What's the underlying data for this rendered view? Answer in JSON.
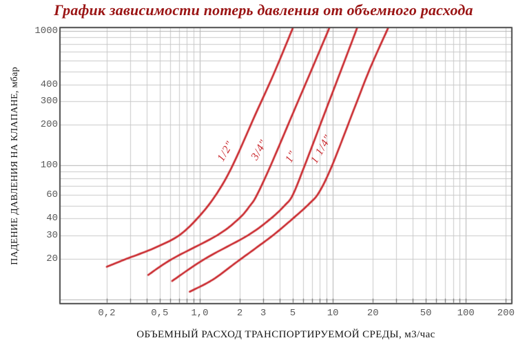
{
  "chart_data": {
    "type": "line",
    "title": "График зависимости потерь давления от объемного расхода",
    "xlabel": "ОБЪЕМНЫЙ РАСХОД ТРАНСПОРТИРУЕМОЙ СРЕДЫ, м3/час",
    "ylabel": "ПАДЕНИЕ ДАВЛЕНИЯ НА КЛАПАНЕ, мбар",
    "x_scale": "log",
    "y_scale": "log",
    "xlim": [
      0.09,
      219
    ],
    "ylim": [
      9.4,
      1050
    ],
    "grid": true,
    "legend_position": "labels-along-curves",
    "colors": {
      "curve": "#c9282d",
      "title": "#9a1414",
      "grid_minor": "#c9c9c9",
      "grid_major": "#b2b2b2",
      "axis_frame": "#4a4a4a",
      "tick_text": "#5a5a5a",
      "axis_title_text": "#151515"
    },
    "x_ticks": [
      {
        "v": 0.2,
        "label": "0,2"
      },
      {
        "v": 0.5,
        "label": "0,5"
      },
      {
        "v": 1,
        "label": "1,0"
      },
      {
        "v": 2,
        "label": "2"
      },
      {
        "v": 3,
        "label": "3"
      },
      {
        "v": 5,
        "label": "5"
      },
      {
        "v": 10,
        "label": "10"
      },
      {
        "v": 20,
        "label": "20"
      },
      {
        "v": 50,
        "label": "50"
      },
      {
        "v": 100,
        "label": "100"
      },
      {
        "v": 200,
        "label": "200"
      }
    ],
    "y_ticks": [
      {
        "v": 1000,
        "label": "1000"
      },
      {
        "v": 400,
        "label": "400"
      },
      {
        "v": 300,
        "label": "300"
      },
      {
        "v": 200,
        "label": "200"
      },
      {
        "v": 100,
        "label": "100"
      },
      {
        "v": 60,
        "label": "60"
      },
      {
        "v": 40,
        "label": "40"
      },
      {
        "v": 30,
        "label": "30"
      },
      {
        "v": 20,
        "label": "20"
      }
    ],
    "series": [
      {
        "name": "1/2\"",
        "label": {
          "text": "1/2\"",
          "x": 1.57,
          "y": 127,
          "rotation": -60
        },
        "points": [
          [
            0.2,
            17.5
          ],
          [
            0.28,
            20
          ],
          [
            0.45,
            24
          ],
          [
            0.7,
            30
          ],
          [
            1.0,
            42
          ],
          [
            1.35,
            62
          ],
          [
            1.77,
            100
          ],
          [
            2.6,
            235
          ],
          [
            3.6,
            480
          ],
          [
            5.0,
            1050
          ]
        ]
      },
      {
        "name": "3/4\"",
        "label": {
          "text": "3/4\"",
          "x": 2.82,
          "y": 130,
          "rotation": -60
        },
        "points": [
          [
            0.41,
            15.2
          ],
          [
            0.62,
            20
          ],
          [
            1.35,
            30
          ],
          [
            1.97,
            40
          ],
          [
            2.39,
            50
          ],
          [
            2.69,
            60
          ],
          [
            3.42,
            100
          ],
          [
            5.07,
            250
          ],
          [
            6.84,
            500
          ],
          [
            9.4,
            1050
          ]
        ]
      },
      {
        "name": "1\"",
        "label": {
          "text": "1\"",
          "x": 4.89,
          "y": 115,
          "rotation": -60
        },
        "points": [
          [
            0.62,
            13.7
          ],
          [
            1.09,
            20
          ],
          [
            2.3,
            30
          ],
          [
            3.42,
            40
          ],
          [
            4.34,
            50
          ],
          [
            5.0,
            60
          ],
          [
            6.16,
            100
          ],
          [
            9.0,
            268
          ],
          [
            12.0,
            566
          ],
          [
            15.2,
            1050
          ]
        ]
      },
      {
        "name": "1 1/4\"",
        "label": {
          "text": "1 1/4\"",
          "x": 8.3,
          "y": 131,
          "rotation": -60
        },
        "points": [
          [
            0.84,
            11.4
          ],
          [
            1.25,
            14
          ],
          [
            1.9,
            19
          ],
          [
            2.7,
            24.5
          ],
          [
            3.7,
            31
          ],
          [
            5.3,
            42
          ],
          [
            6.7,
            52
          ],
          [
            7.9,
            63
          ],
          [
            9.9,
            100
          ],
          [
            14.4,
            260
          ],
          [
            19.1,
            530
          ],
          [
            26,
            1050
          ]
        ]
      }
    ]
  }
}
